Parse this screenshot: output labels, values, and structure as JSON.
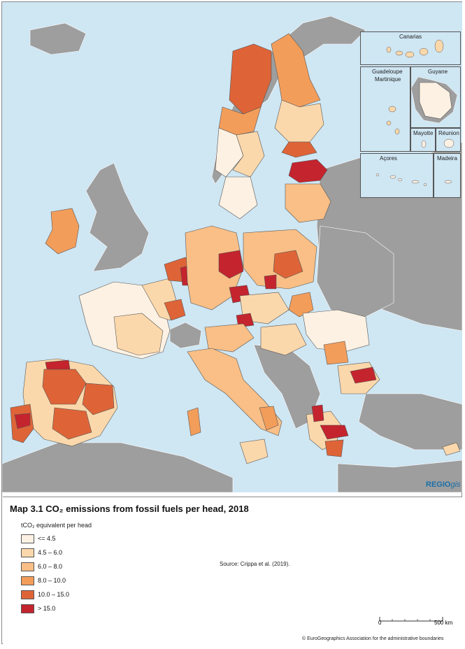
{
  "title": "Map 3.1 CO₂ emissions from fossil fuels per head, 2018",
  "legend": {
    "unit": "tCO₂ equivalent per head",
    "classes": [
      {
        "label": "<= 4.5",
        "color": "#fdf1e3"
      },
      {
        "label": "4.5 – 6.0",
        "color": "#fbd8ab"
      },
      {
        "label": "6.0 – 8.0",
        "color": "#f9bf86"
      },
      {
        "label": "8.0 – 10.0",
        "color": "#f39d5a"
      },
      {
        "label": "10.0 – 15.0",
        "color": "#de6438"
      },
      {
        "label": "> 15.0",
        "color": "#c4242e"
      }
    ]
  },
  "source": "Source: Crippa et al. (2019).",
  "scale": {
    "zero": "0",
    "max": "500 km"
  },
  "copyright": "© EuroGeographics Association for the administrative boundaries",
  "brand": {
    "main": "REGIO",
    "suffix": "gis"
  },
  "insets": {
    "canarias": "Canarias",
    "guadeloupe": "Guadeloupe",
    "martinique": "Martinique",
    "guyane": "Guyane",
    "mayotte": "Mayotte",
    "reunion": "Réunion",
    "acores": "Açores",
    "madeira": "Madeira"
  },
  "colors": {
    "sea": "#cfe6f3",
    "non_eu_land": "#9e9e9e",
    "border": "#555555"
  }
}
